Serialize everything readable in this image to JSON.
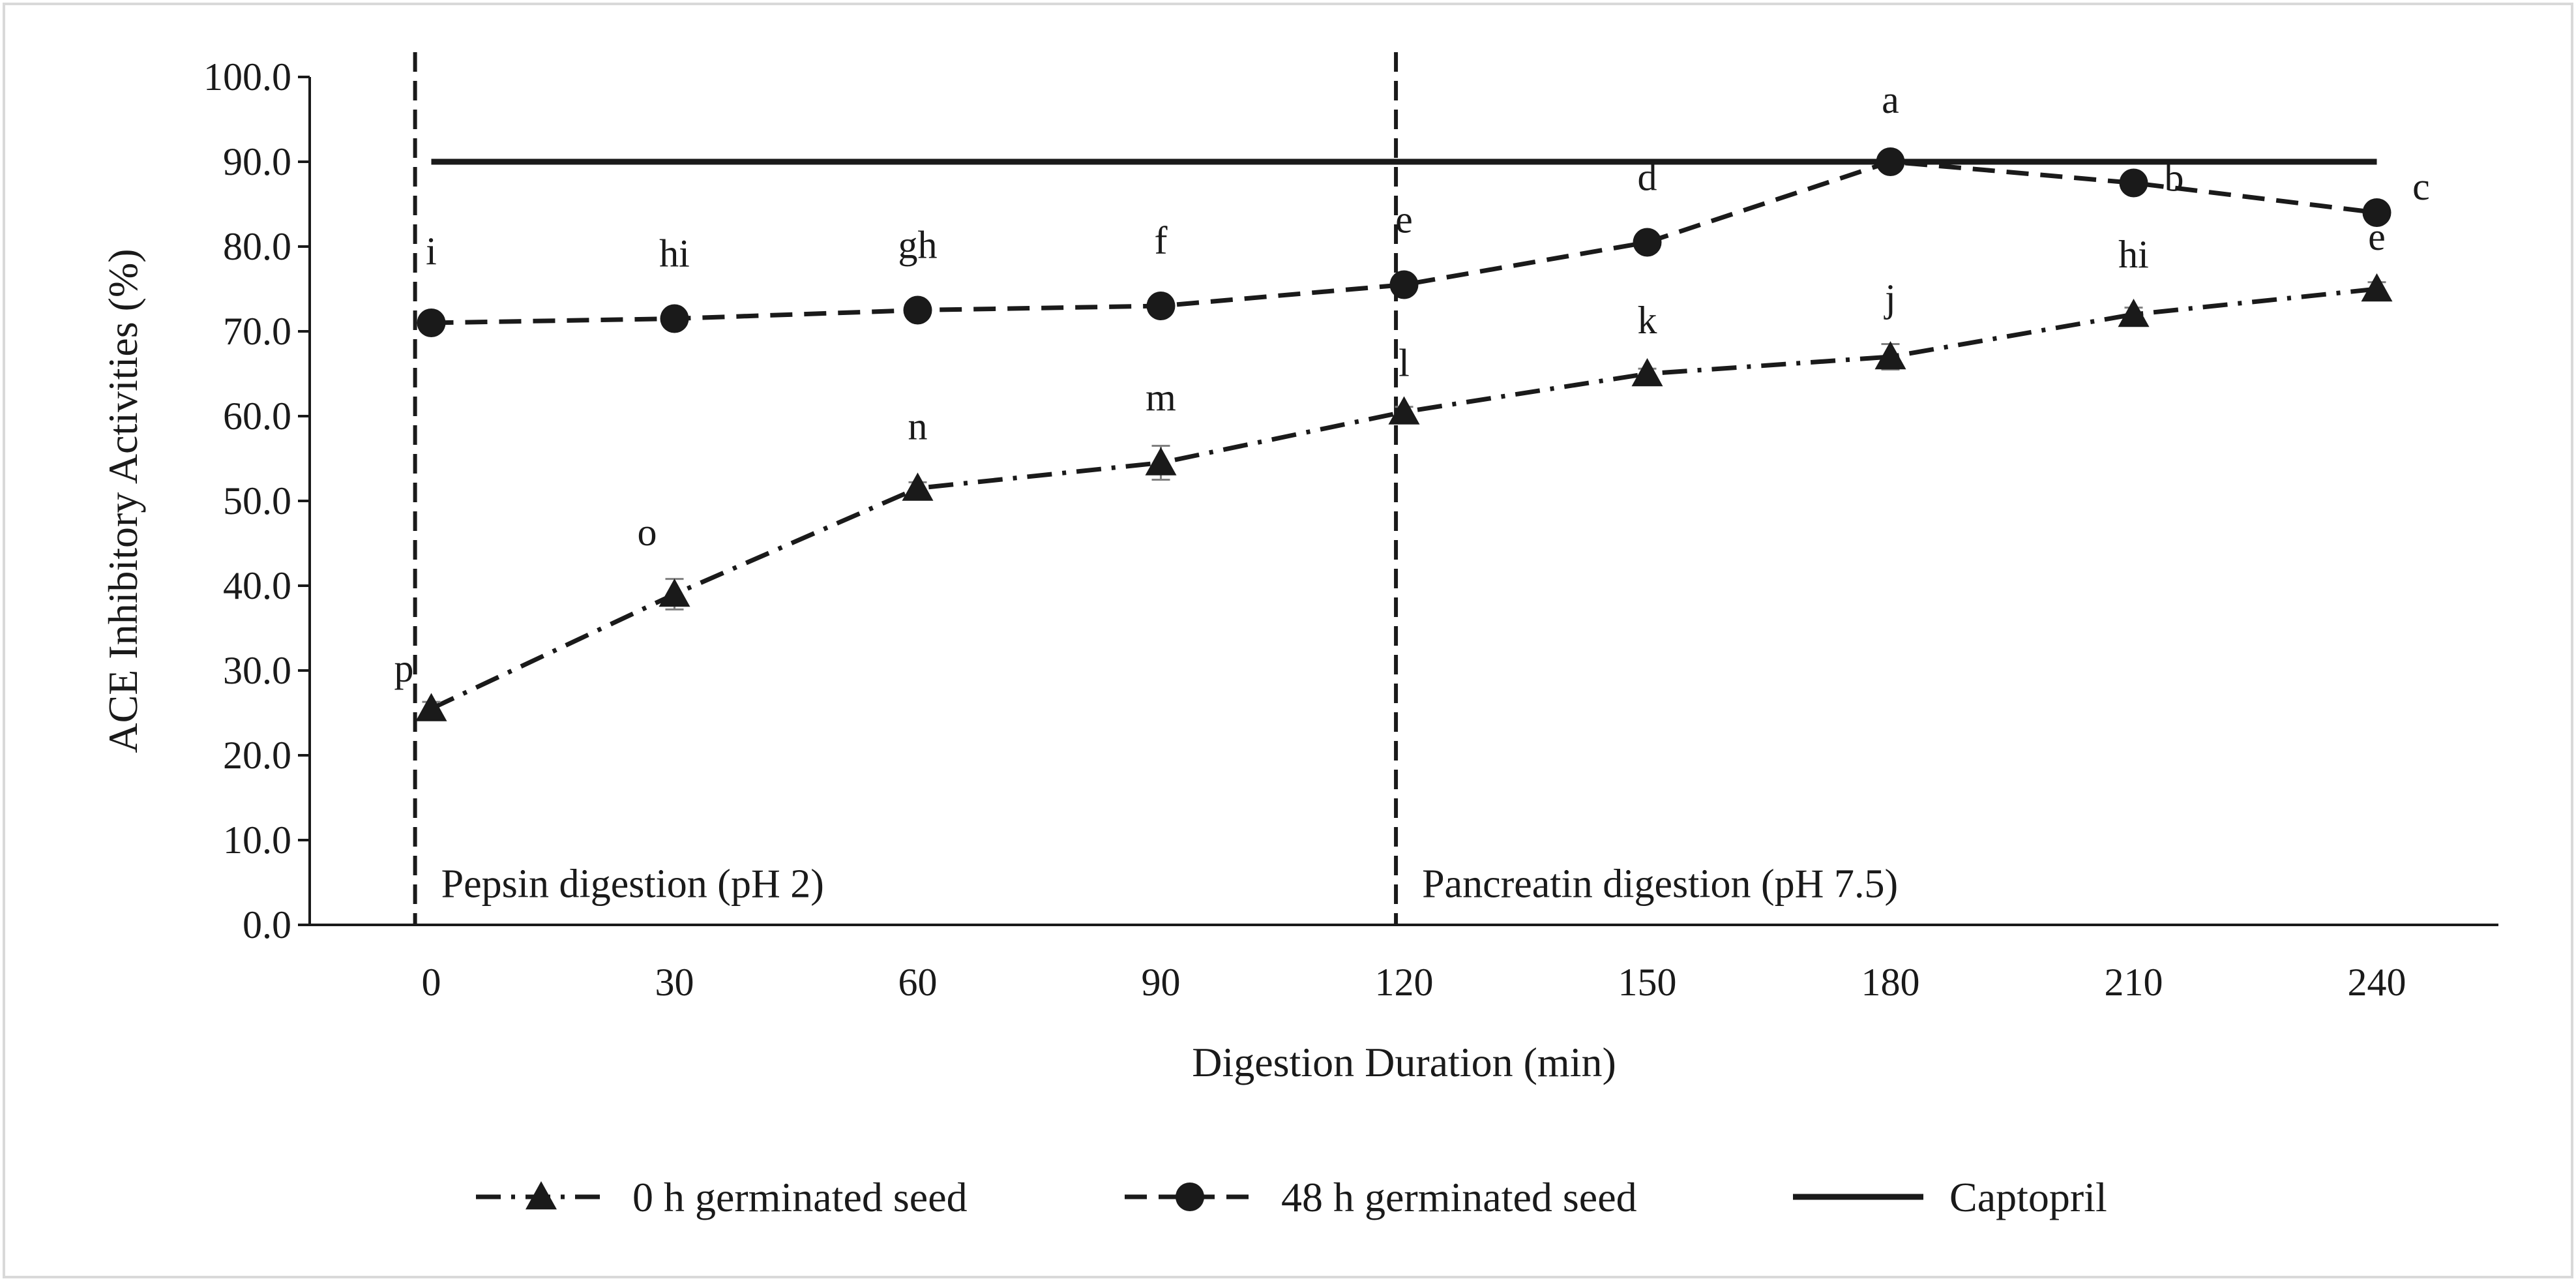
{
  "chart_data": {
    "type": "line",
    "title": "",
    "xlabel": "Digestion Duration (min)",
    "ylabel": "ACE Inhibitory Activities (%)",
    "x": [
      0,
      30,
      60,
      90,
      120,
      150,
      180,
      210,
      240
    ],
    "x_tick_labels": [
      "0",
      "30",
      "60",
      "90",
      "120",
      "150",
      "180",
      "210",
      "240"
    ],
    "y_tick_labels": [
      "0.0",
      "10.0",
      "20.0",
      "30.0",
      "40.0",
      "50.0",
      "60.0",
      "70.0",
      "80.0",
      "90.0",
      "100.0"
    ],
    "xlim": [
      -15,
      255
    ],
    "ylim": [
      0,
      100
    ],
    "grid": false,
    "legend_position": "bottom",
    "series": [
      {
        "name": "0 h germinated seed",
        "marker": "triangle",
        "line_style": "dash-dot",
        "values": [
          25.5,
          39.0,
          51.5,
          54.5,
          60.5,
          65.0,
          67.0,
          72.0,
          75.0
        ],
        "error": [
          0.8,
          1.8,
          0.7,
          2.0,
          0.6,
          0.6,
          1.5,
          0.8,
          0.8
        ],
        "letters": [
          "p",
          "o",
          "n",
          "m",
          "l",
          "k",
          "j",
          "hi",
          "e"
        ]
      },
      {
        "name": "48 h germinated seed",
        "marker": "circle",
        "line_style": "dash",
        "values": [
          71.0,
          71.5,
          72.5,
          73.0,
          75.5,
          80.5,
          90.0,
          87.5,
          84.0
        ],
        "error": [
          0.3,
          0.3,
          0.3,
          0.3,
          0.3,
          0.4,
          0.3,
          0.3,
          0.3
        ],
        "letters": [
          "i",
          "hi",
          "gh",
          "f",
          "e",
          "d",
          "a",
          "b",
          "c"
        ]
      },
      {
        "name": "Captopril",
        "marker": "none",
        "line_style": "solid",
        "values": [
          90,
          90,
          90,
          90,
          90,
          90,
          90,
          90,
          90
        ]
      }
    ],
    "reference_lines": [
      {
        "x": -2,
        "style": "dash",
        "label": "Pepsin digestion (pH 2)"
      },
      {
        "x": 119,
        "style": "dash",
        "label": "Pancreatin digestion (pH 7.5)"
      }
    ]
  }
}
